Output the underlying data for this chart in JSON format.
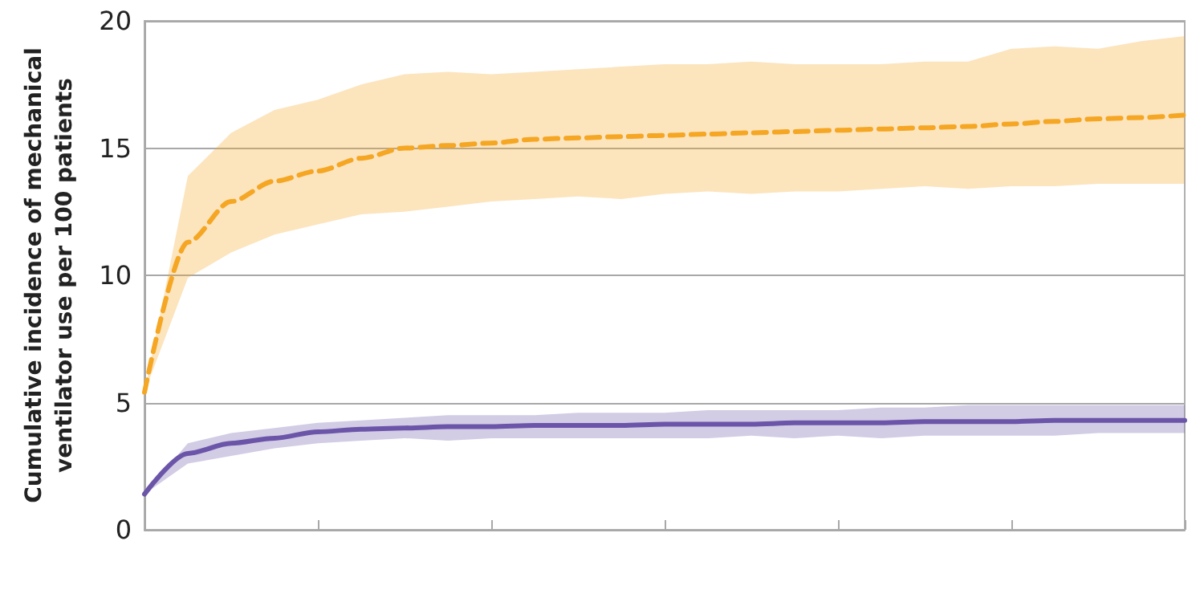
{
  "chart_data": {
    "type": "line",
    "ylabel": "Cumulative incidence of mechanical ventilator use per 100 patients",
    "categories": [
      null,
      null,
      null,
      null,
      null,
      null,
      null,
      null,
      null,
      null,
      null,
      null,
      null,
      null,
      null,
      null,
      null,
      null,
      null,
      null,
      null,
      null,
      null,
      null,
      null
    ],
    "series": [
      {
        "color": "#f5a623",
        "line_style": "dashed",
        "values": [
          5.4,
          11.3,
          12.9,
          13.7,
          14.1,
          14.6,
          15.0,
          15.1,
          15.2,
          15.35,
          15.4,
          15.45,
          15.5,
          15.55,
          15.6,
          15.65,
          15.7,
          15.75,
          15.8,
          15.85,
          15.95,
          16.05,
          16.15,
          16.2,
          16.3
        ],
        "lower": [
          5.4,
          9.9,
          10.9,
          11.6,
          12.0,
          12.4,
          12.5,
          12.7,
          12.9,
          13.0,
          13.1,
          13.0,
          13.2,
          13.3,
          13.2,
          13.3,
          13.3,
          13.4,
          13.5,
          13.4,
          13.5,
          13.5,
          13.6,
          13.6,
          13.6
        ],
        "upper": [
          5.4,
          13.9,
          15.6,
          16.5,
          16.9,
          17.5,
          17.9,
          18.0,
          17.9,
          18.0,
          18.1,
          18.2,
          18.3,
          18.3,
          18.4,
          18.3,
          18.3,
          18.3,
          18.4,
          18.4,
          18.9,
          19.0,
          18.9,
          19.2,
          19.4
        ]
      },
      {
        "color": "#6b55a8",
        "line_style": "solid",
        "values": [
          1.4,
          3.0,
          3.4,
          3.6,
          3.85,
          3.95,
          4.0,
          4.05,
          4.05,
          4.1,
          4.1,
          4.1,
          4.15,
          4.15,
          4.15,
          4.2,
          4.2,
          4.2,
          4.25,
          4.25,
          4.25,
          4.3,
          4.3,
          4.3,
          4.3
        ],
        "lower": [
          1.4,
          2.6,
          2.9,
          3.2,
          3.4,
          3.5,
          3.6,
          3.5,
          3.6,
          3.6,
          3.6,
          3.6,
          3.6,
          3.6,
          3.7,
          3.6,
          3.7,
          3.6,
          3.7,
          3.7,
          3.7,
          3.7,
          3.8,
          3.8,
          3.8
        ],
        "upper": [
          1.4,
          3.4,
          3.8,
          4.0,
          4.2,
          4.3,
          4.4,
          4.5,
          4.5,
          4.5,
          4.6,
          4.6,
          4.6,
          4.7,
          4.7,
          4.7,
          4.7,
          4.8,
          4.8,
          4.9,
          4.9,
          4.9,
          4.9,
          4.9,
          4.9
        ]
      }
    ],
    "ylim": [
      0,
      20
    ],
    "yticks": [
      0,
      5,
      10,
      15,
      20
    ],
    "grid": "y",
    "marker": "none",
    "tick_labels": "y"
  }
}
